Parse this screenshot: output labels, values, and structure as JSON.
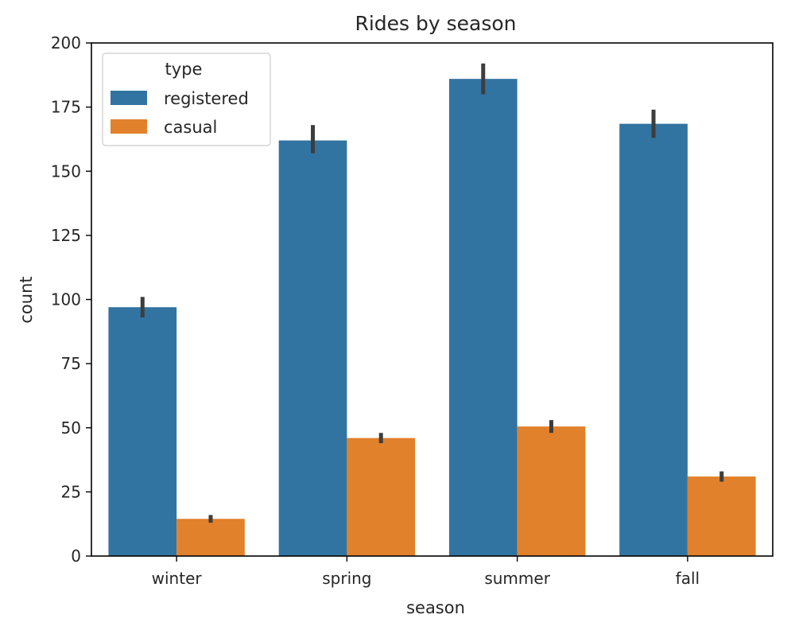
{
  "chart_data": {
    "type": "bar",
    "title": "Rides by season",
    "xlabel": "season",
    "ylabel": "count",
    "categories": [
      "winter",
      "spring",
      "summer",
      "fall"
    ],
    "ylim": [
      0,
      200
    ],
    "yticks": [
      0,
      25,
      50,
      75,
      100,
      125,
      150,
      175,
      200
    ],
    "legend": {
      "title": "type",
      "position": "top-left"
    },
    "series": [
      {
        "name": "registered",
        "color": "#3274a1",
        "values": [
          97,
          162,
          186,
          168.5
        ],
        "error_low": [
          93,
          157,
          180,
          163
        ],
        "error_high": [
          101,
          168,
          192,
          174
        ]
      },
      {
        "name": "casual",
        "color": "#e1812c",
        "values": [
          14.5,
          46,
          50.5,
          31
        ],
        "error_low": [
          13,
          44,
          48,
          29
        ],
        "error_high": [
          16,
          48,
          53,
          33
        ]
      }
    ],
    "error_bar_color": "#3d3d3d",
    "grid": false
  }
}
